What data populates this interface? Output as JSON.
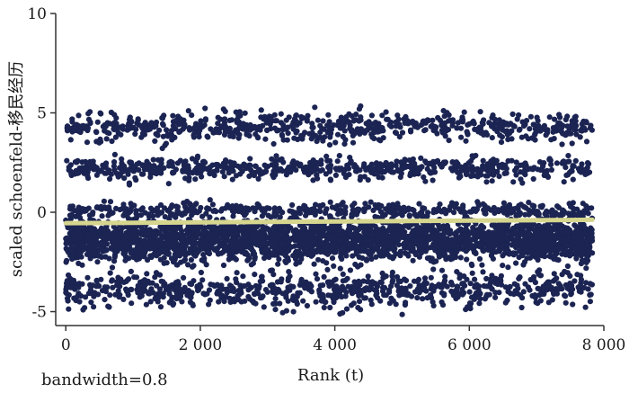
{
  "chart_data": {
    "type": "scatter",
    "xlabel": "Rank (t)",
    "ylabel": "scaled schoenfeld-移民经历",
    "xlim": [
      -150,
      8000
    ],
    "ylim": [
      -5.7,
      10
    ],
    "x_ticks": [
      {
        "value": 0,
        "label": "0"
      },
      {
        "value": 2000,
        "label": "2 000"
      },
      {
        "value": 4000,
        "label": "4 000"
      },
      {
        "value": 6000,
        "label": "6 000"
      },
      {
        "value": 8000,
        "label": "8 000"
      }
    ],
    "y_ticks": [
      {
        "value": -5,
        "label": "-5"
      },
      {
        "value": 0,
        "label": "0"
      },
      {
        "value": 5,
        "label": "5"
      },
      {
        "value": 10,
        "label": "10"
      }
    ],
    "annotation": "bandwidth=0.8",
    "grid": false,
    "point_color": "#1b2452",
    "smooth_color": "#d6d68e",
    "point_x_range": [
      0,
      7830
    ],
    "point_bands": [
      {
        "center": -1.4,
        "spread": 0.95,
        "share": 0.52
      },
      {
        "center": -3.9,
        "spread": 0.75,
        "share": 0.15
      },
      {
        "center": 2.2,
        "spread": 0.45,
        "share": 0.12
      },
      {
        "center": 4.3,
        "spread": 0.65,
        "share": 0.13
      },
      {
        "center": 0.1,
        "spread": 0.35,
        "share": 0.08
      }
    ],
    "point_count": 5200,
    "smooth_line": {
      "x": [
        0,
        7830
      ],
      "y": [
        -0.55,
        -0.38
      ]
    }
  }
}
